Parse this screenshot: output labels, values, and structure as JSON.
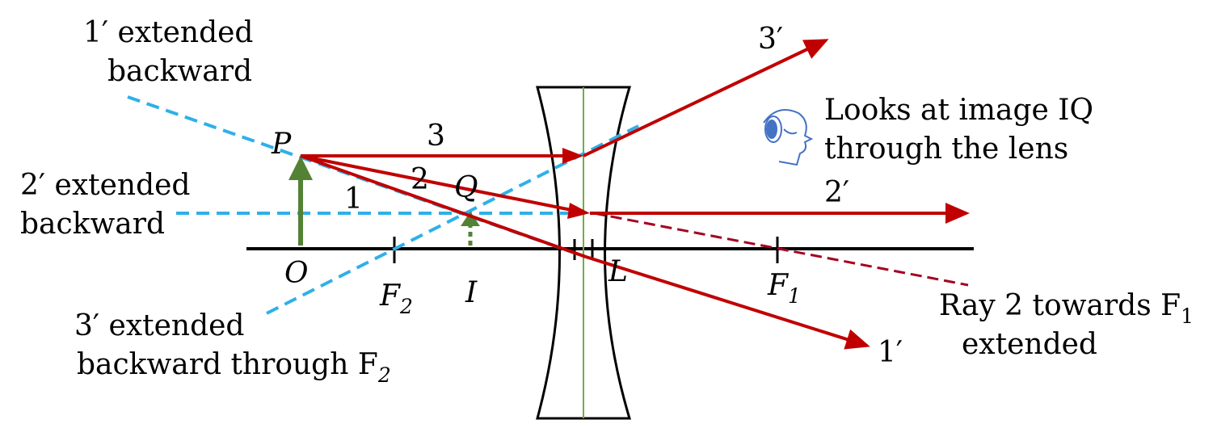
{
  "labels": {
    "ray1_back_l1": "1′ extended",
    "ray1_back_l2": "backward",
    "ray2_back_l1": "2′ extended",
    "ray2_back_l2": "backward",
    "ray3_back_l1": "3′ extended",
    "ray3_back_l2": "backward through F",
    "ray3_back_sub": "2",
    "ray2_ext_l1": "Ray 2 towards F",
    "ray2_ext_sub": "1",
    "ray2_ext_l2": "extended",
    "eye_l1": "Looks at image IQ",
    "eye_l2": "through the lens",
    "ray_3": "3",
    "ray_2": "2",
    "ray_1": "1",
    "ray_3p": "3′",
    "ray_2p": "2′",
    "ray_1p": "1′",
    "P": "P",
    "Q": "Q",
    "O": "O",
    "I": "I",
    "L": "L",
    "F2": "F",
    "F2_sub": "2",
    "F1": "F",
    "F1_sub": "1"
  },
  "colors": {
    "real_ray": "#c00000",
    "dashed_extension": "#2fb0e8",
    "object": "#548235",
    "axis": "#000000",
    "lens_axis": "#70ad47",
    "eye": "#4472c4"
  },
  "icons": {
    "eye": "eye-icon"
  }
}
